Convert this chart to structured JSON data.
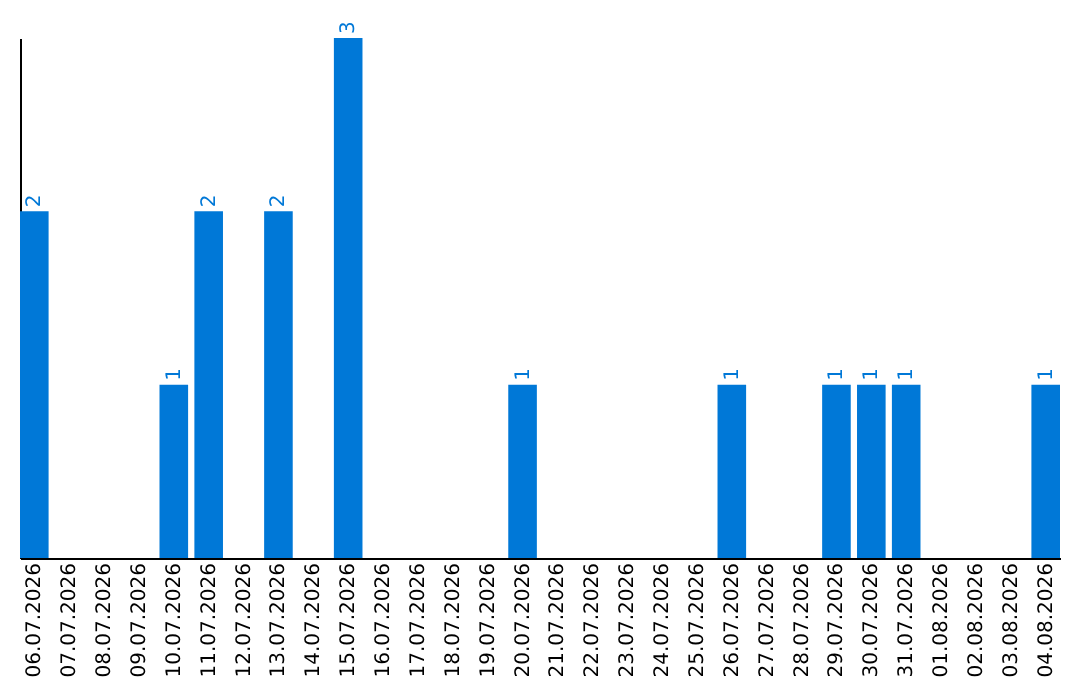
{
  "chart_data": {
    "type": "bar",
    "categories": [
      "06.07.2026",
      "07.07.2026",
      "08.07.2026",
      "09.07.2026",
      "10.07.2026",
      "11.07.2026",
      "12.07.2026",
      "13.07.2026",
      "14.07.2026",
      "15.07.2026",
      "16.07.2026",
      "17.07.2026",
      "18.07.2026",
      "19.07.2026",
      "20.07.2026",
      "21.07.2026",
      "22.07.2026",
      "23.07.2026",
      "24.07.2026",
      "25.07.2026",
      "26.07.2026",
      "27.07.2026",
      "28.07.2026",
      "29.07.2026",
      "30.07.2026",
      "31.07.2026",
      "01.08.2026",
      "02.08.2026",
      "03.08.2026",
      "04.08.2026"
    ],
    "values": [
      2,
      null,
      null,
      null,
      1,
      2,
      null,
      2,
      null,
      3,
      null,
      null,
      null,
      null,
      1,
      null,
      null,
      null,
      null,
      null,
      1,
      null,
      null,
      1,
      1,
      1,
      null,
      null,
      null,
      1
    ],
    "color": "#0078d7",
    "data_labels": true,
    "tick_labels": "x",
    "grid": false
  }
}
